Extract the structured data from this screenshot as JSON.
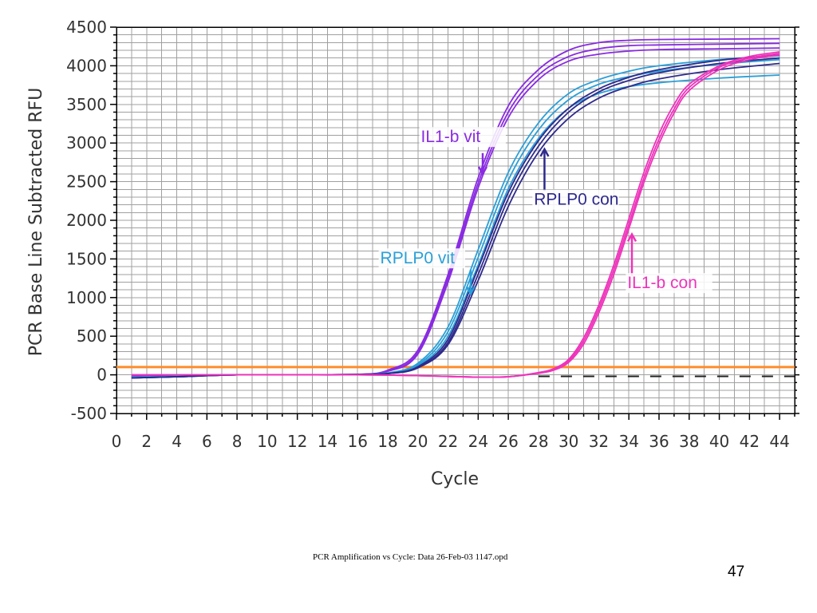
{
  "caption": "PCR Amplification vs Cycle: Data 26-Feb-03 1147.opd",
  "slide_number": "47",
  "colors": {
    "il1b_vit": "#8a2be2",
    "rplp0_vit": "#2a9fd8",
    "rplp0_con": "#2e2a8c",
    "il1b_con": "#ee33bb",
    "threshold": "#ff8c2a",
    "grid": "#a0a0a0"
  },
  "chart_data": {
    "type": "line",
    "title": "",
    "xlabel": "Cycle",
    "ylabel": "PCR Base Line Subtracted RFU",
    "xlim": [
      0,
      45
    ],
    "ylim": [
      -500,
      4500
    ],
    "xticks": [
      "0",
      "2",
      "4",
      "6",
      "8",
      "10",
      "12",
      "14",
      "16",
      "18",
      "20",
      "22",
      "24",
      "26",
      "28",
      "30",
      "32",
      "34",
      "36",
      "38",
      "40",
      "42",
      "44"
    ],
    "yticks": [
      "4500",
      "4000",
      "3500",
      "3000",
      "2500",
      "2000",
      "1500",
      "1000",
      "500",
      "0",
      "-500"
    ],
    "grid": true,
    "threshold": 100,
    "series": [
      {
        "name": "IL1-b vit",
        "color": "il1b_vit",
        "x": [
          1,
          4,
          8,
          12,
          16,
          18,
          20,
          22,
          24,
          26,
          28,
          30,
          32,
          34,
          36,
          40,
          44
        ],
        "y": [
          -20,
          -10,
          0,
          0,
          5,
          60,
          320,
          1300,
          2550,
          3480,
          3950,
          4200,
          4300,
          4330,
          4340,
          4345,
          4350
        ]
      },
      {
        "name": "",
        "color": "il1b_vit",
        "x": [
          1,
          4,
          8,
          12,
          16,
          18,
          20,
          22,
          24,
          26,
          28,
          30,
          32,
          34,
          36,
          40,
          44
        ],
        "y": [
          -20,
          -10,
          0,
          0,
          5,
          50,
          290,
          1250,
          2480,
          3400,
          3880,
          4120,
          4220,
          4260,
          4270,
          4280,
          4290
        ]
      },
      {
        "name": "",
        "color": "il1b_vit",
        "x": [
          1,
          4,
          8,
          12,
          16,
          18,
          20,
          22,
          24,
          26,
          28,
          30,
          32,
          34,
          36,
          40,
          44
        ],
        "y": [
          -20,
          -10,
          0,
          0,
          5,
          45,
          270,
          1200,
          2420,
          3330,
          3820,
          4060,
          4150,
          4190,
          4210,
          4220,
          4230
        ]
      },
      {
        "name": "RPLP0 vit",
        "color": "rplp0_vit",
        "x": [
          1,
          4,
          8,
          12,
          16,
          18,
          20,
          22,
          24,
          26,
          28,
          30,
          32,
          34,
          36,
          40,
          44
        ],
        "y": [
          -30,
          -20,
          0,
          0,
          5,
          25,
          150,
          620,
          1620,
          2620,
          3260,
          3640,
          3820,
          3930,
          4000,
          4080,
          4130
        ]
      },
      {
        "name": "",
        "color": "rplp0_vit",
        "x": [
          1,
          4,
          8,
          12,
          16,
          18,
          20,
          22,
          24,
          26,
          28,
          30,
          32,
          34,
          36,
          40,
          44
        ],
        "y": [
          -30,
          -20,
          0,
          0,
          5,
          22,
          130,
          560,
          1520,
          2520,
          3170,
          3560,
          3760,
          3860,
          3930,
          4020,
          4080
        ]
      },
      {
        "name": "",
        "color": "rplp0_vit",
        "x": [
          1,
          4,
          8,
          12,
          16,
          18,
          20,
          22,
          24,
          26,
          28,
          30,
          32,
          34,
          36,
          40,
          44
        ],
        "y": [
          -30,
          -20,
          0,
          0,
          5,
          20,
          115,
          500,
          1420,
          2410,
          3060,
          3450,
          3640,
          3730,
          3780,
          3840,
          3880
        ]
      },
      {
        "name": "RPLP0 con",
        "color": "rplp0_con",
        "x": [
          1,
          4,
          8,
          12,
          16,
          18,
          20,
          22,
          24,
          26,
          28,
          30,
          32,
          34,
          36,
          40,
          44
        ],
        "y": [
          -40,
          -25,
          0,
          0,
          5,
          15,
          90,
          390,
          1220,
          2180,
          2880,
          3320,
          3580,
          3730,
          3830,
          3950,
          4030
        ]
      },
      {
        "name": "",
        "color": "rplp0_con",
        "x": [
          1,
          4,
          8,
          12,
          16,
          18,
          20,
          22,
          24,
          26,
          28,
          30,
          32,
          34,
          36,
          40,
          44
        ],
        "y": [
          -40,
          -25,
          0,
          0,
          5,
          15,
          95,
          420,
          1300,
          2280,
          2960,
          3400,
          3660,
          3810,
          3910,
          4030,
          4100
        ]
      },
      {
        "name": "",
        "color": "rplp0_con",
        "x": [
          1,
          4,
          8,
          12,
          16,
          18,
          20,
          22,
          24,
          26,
          28,
          30,
          32,
          34,
          36,
          40,
          44
        ],
        "y": [
          -40,
          -25,
          0,
          0,
          5,
          18,
          105,
          460,
          1380,
          2360,
          3030,
          3450,
          3700,
          3850,
          3950,
          4070,
          4140
        ]
      },
      {
        "name": "IL1-b con",
        "color": "il1b_con",
        "x": [
          1,
          8,
          16,
          20,
          24,
          26,
          28,
          29,
          30,
          31,
          32,
          33,
          34,
          35,
          36,
          37,
          38,
          40,
          42,
          44
        ],
        "y": [
          0,
          0,
          0,
          -10,
          -30,
          -25,
          30,
          80,
          200,
          480,
          900,
          1420,
          2020,
          2620,
          3120,
          3500,
          3760,
          4000,
          4120,
          4180
        ]
      },
      {
        "name": "",
        "color": "il1b_con",
        "x": [
          1,
          8,
          16,
          20,
          24,
          26,
          28,
          29,
          30,
          31,
          32,
          33,
          34,
          35,
          36,
          37,
          38,
          40,
          42,
          44
        ],
        "y": [
          0,
          0,
          0,
          -10,
          -30,
          -25,
          25,
          70,
          180,
          440,
          850,
          1360,
          1950,
          2550,
          3050,
          3440,
          3720,
          3980,
          4100,
          4160
        ]
      },
      {
        "name": "",
        "color": "il1b_con",
        "x": [
          1,
          8,
          16,
          20,
          24,
          26,
          28,
          29,
          30,
          31,
          32,
          33,
          34,
          35,
          36,
          37,
          38,
          40,
          42,
          44
        ],
        "y": [
          0,
          0,
          0,
          -10,
          -30,
          -25,
          20,
          60,
          160,
          400,
          800,
          1300,
          1890,
          2490,
          2990,
          3390,
          3680,
          3950,
          4080,
          4140
        ]
      }
    ],
    "annotations": [
      {
        "text": "IL1-b vit",
        "color": "il1b_vit",
        "label_at": [
          20.2,
          3010
        ],
        "arrow_from": [
          24.3,
          2870
        ],
        "arrow_to": [
          24.3,
          2600
        ]
      },
      {
        "text": "RPLP0 con",
        "color": "rplp0_con",
        "label_at": [
          27.7,
          2200
        ],
        "arrow_from": [
          28.4,
          2380
        ],
        "arrow_to": [
          28.4,
          2920
        ]
      },
      {
        "text": "RPLP0 vit",
        "color": "rplp0_vit",
        "label_at": [
          17.5,
          1440
        ],
        "arrow_from": [
          23.5,
          1360
        ],
        "arrow_to": [
          23.5,
          1050
        ]
      },
      {
        "text": "IL1-b con",
        "color": "il1b_con",
        "label_at": [
          33.9,
          1120
        ],
        "arrow_from": [
          34.2,
          1280
        ],
        "arrow_to": [
          34.2,
          1820
        ]
      }
    ]
  }
}
